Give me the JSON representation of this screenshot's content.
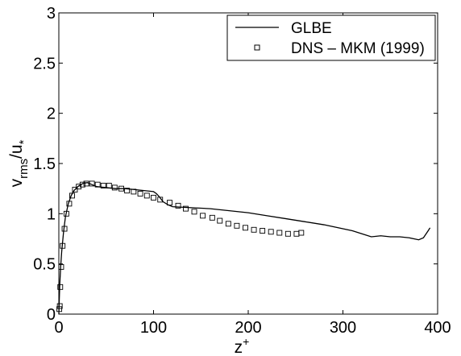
{
  "chart_data": {
    "type": "line",
    "xlabel": "z",
    "xlabel_sup": "+",
    "ylabel": "v",
    "ylabel_sub": "rms",
    "ylabel_mid": "/u",
    "ylabel_sub2": "*",
    "xlim": [
      0,
      400
    ],
    "ylim": [
      0,
      3
    ],
    "xticks": [
      0,
      100,
      200,
      300,
      400
    ],
    "yticks": [
      0,
      0.5,
      1,
      1.5,
      2,
      2.5,
      3
    ],
    "xtick_labels": [
      "0",
      "100",
      "200",
      "300",
      "400"
    ],
    "ytick_labels": [
      "0",
      "0.5",
      "1",
      "1.5",
      "2",
      "2.5",
      "3"
    ],
    "grid": false,
    "legend_position": "top-right",
    "series": [
      {
        "name": "GLBE",
        "style": "line",
        "color": "#000000",
        "x": [
          0,
          1,
          2,
          3,
          5,
          7,
          10,
          13,
          16,
          20,
          25,
          30,
          35,
          40,
          50,
          60,
          70,
          80,
          90,
          100,
          103,
          106,
          110,
          115,
          120,
          140,
          160,
          180,
          200,
          220,
          240,
          260,
          280,
          300,
          310,
          320,
          330,
          340,
          350,
          360,
          370,
          375,
          380,
          385,
          390,
          392
        ],
        "y": [
          0,
          0.3,
          0.48,
          0.62,
          0.82,
          0.97,
          1.1,
          1.18,
          1.23,
          1.27,
          1.3,
          1.31,
          1.29,
          1.27,
          1.26,
          1.25,
          1.25,
          1.24,
          1.23,
          1.22,
          1.2,
          1.17,
          1.12,
          1.09,
          1.07,
          1.06,
          1.05,
          1.03,
          1.01,
          0.98,
          0.95,
          0.92,
          0.89,
          0.85,
          0.83,
          0.8,
          0.77,
          0.78,
          0.77,
          0.77,
          0.76,
          0.75,
          0.74,
          0.76,
          0.83,
          0.86
        ]
      },
      {
        "name": "DNS – MKM (1999)",
        "style": "marker",
        "marker": "square",
        "color": "#000000",
        "x": [
          0.5,
          1,
          1.5,
          2.5,
          4,
          6,
          8,
          11,
          14,
          17,
          21,
          25,
          29,
          35,
          41,
          47,
          53,
          59,
          66,
          72,
          79,
          86,
          93,
          100,
          107,
          117,
          126,
          134,
          143,
          152,
          162,
          170,
          179,
          188,
          197,
          206,
          215,
          224,
          233,
          242,
          251,
          256
        ],
        "y": [
          0.05,
          0.08,
          0.27,
          0.47,
          0.68,
          0.85,
          1.0,
          1.1,
          1.18,
          1.24,
          1.27,
          1.29,
          1.3,
          1.3,
          1.29,
          1.28,
          1.28,
          1.26,
          1.25,
          1.23,
          1.22,
          1.2,
          1.18,
          1.16,
          1.14,
          1.11,
          1.08,
          1.05,
          1.02,
          0.98,
          0.96,
          0.93,
          0.9,
          0.88,
          0.86,
          0.84,
          0.83,
          0.82,
          0.81,
          0.8,
          0.8,
          0.81
        ]
      }
    ]
  }
}
